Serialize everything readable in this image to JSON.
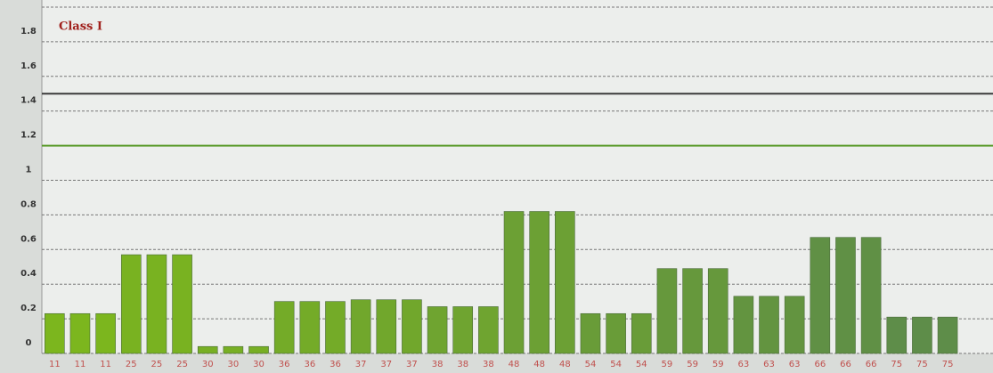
{
  "chart_data": {
    "type": "bar",
    "title": "Class I",
    "categories": [
      "11",
      "11",
      "11",
      "25",
      "25",
      "25",
      "30",
      "30",
      "30",
      "36",
      "36",
      "36",
      "37",
      "37",
      "37",
      "38",
      "38",
      "38",
      "48",
      "48",
      "48",
      "54",
      "54",
      "54",
      "59",
      "59",
      "59",
      "63",
      "63",
      "63",
      "66",
      "66",
      "66",
      "75",
      "75",
      "75"
    ],
    "values": [
      0.23,
      0.23,
      0.23,
      0.57,
      0.57,
      0.57,
      0.04,
      0.04,
      0.04,
      0.3,
      0.3,
      0.3,
      0.31,
      0.31,
      0.31,
      0.27,
      0.27,
      0.27,
      0.82,
      0.82,
      0.82,
      0.23,
      0.23,
      0.23,
      0.49,
      0.49,
      0.49,
      0.33,
      0.33,
      0.33,
      0.67,
      0.67,
      0.67,
      0.21,
      0.21,
      0.21
    ],
    "colors": [
      "#7cb61e",
      "#7cb61e",
      "#7cb61e",
      "#79b221",
      "#79b221",
      "#79b221",
      "#77af24",
      "#77af24",
      "#77af24",
      "#74ab28",
      "#74ab28",
      "#74ab28",
      "#71a72c",
      "#71a72c",
      "#71a72c",
      "#6fa430",
      "#6fa430",
      "#6fa430",
      "#6ca034",
      "#6ca034",
      "#6ca034",
      "#699c38",
      "#699c38",
      "#699c38",
      "#66983c",
      "#66983c",
      "#66983c",
      "#639440",
      "#639440",
      "#639440",
      "#609045",
      "#609045",
      "#609045",
      "#5e8d49",
      "#5e8d49",
      "#5e8d49"
    ],
    "ylim": [
      0,
      2
    ],
    "yticks": [
      0,
      0.2,
      0.4,
      0.6,
      0.8,
      1,
      1.2,
      1.4,
      1.6,
      1.8,
      2
    ],
    "grid": true,
    "reference_lines": [
      {
        "value": 1.5,
        "color": "#3a3a3a"
      },
      {
        "value": 1.2,
        "color": "#5a9a2a"
      }
    ]
  }
}
